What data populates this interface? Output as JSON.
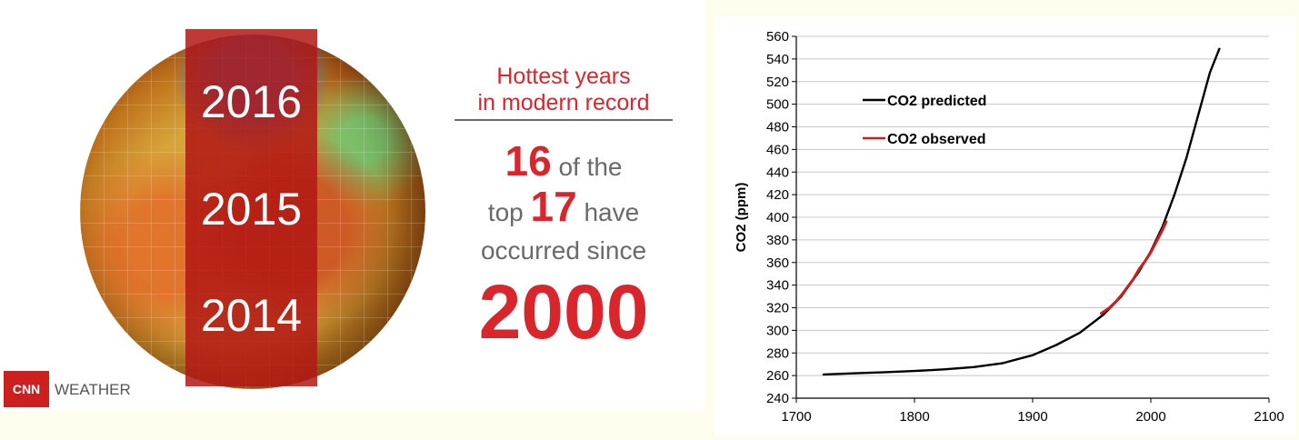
{
  "infographic": {
    "years": [
      "2016",
      "2015",
      "2014"
    ],
    "headline": [
      "Hottest years",
      "in modern record"
    ],
    "stat": {
      "num1": "16",
      "text1": "of the",
      "text2": "top",
      "num2": "17",
      "text3": "have",
      "text4": "occurred since",
      "year": "2000"
    },
    "logo": {
      "brand": "CNN",
      "label": "WEATHER"
    },
    "colors": {
      "accent_red": "#d9262c",
      "band_red": "#b21814"
    }
  },
  "chart_data": {
    "type": "line",
    "ylabel": "CO2 (ppm)",
    "xlabel": "",
    "xlim": [
      1700,
      2100
    ],
    "ylim": [
      240,
      560
    ],
    "x_ticks": [
      1700,
      1800,
      1900,
      2000,
      2100
    ],
    "y_ticks": [
      240,
      260,
      280,
      300,
      320,
      340,
      360,
      380,
      400,
      420,
      440,
      460,
      480,
      500,
      520,
      540,
      560
    ],
    "grid": "horizontal",
    "legend_position": "top-left",
    "series": [
      {
        "name": "CO2 predicted",
        "color": "#000000",
        "x": [
          1723,
          1750,
          1775,
          1800,
          1825,
          1850,
          1875,
          1900,
          1920,
          1940,
          1960,
          1975,
          1990,
          2000,
          2010,
          2020,
          2030,
          2040,
          2050,
          2058
        ],
        "y": [
          261,
          262,
          263,
          264,
          265.5,
          267.5,
          271,
          278,
          287,
          298,
          314,
          330,
          352,
          370,
          392,
          420,
          452,
          490,
          528,
          549
        ]
      },
      {
        "name": "CO2 observed",
        "color": "#cc1f1f",
        "x": [
          1958,
          1965,
          1970,
          1975,
          1980,
          1985,
          1990,
          1995,
          2000,
          2005,
          2010,
          2013
        ],
        "y": [
          315,
          320,
          325,
          331,
          338,
          345,
          354,
          361,
          369,
          379,
          389,
          396
        ]
      }
    ]
  }
}
